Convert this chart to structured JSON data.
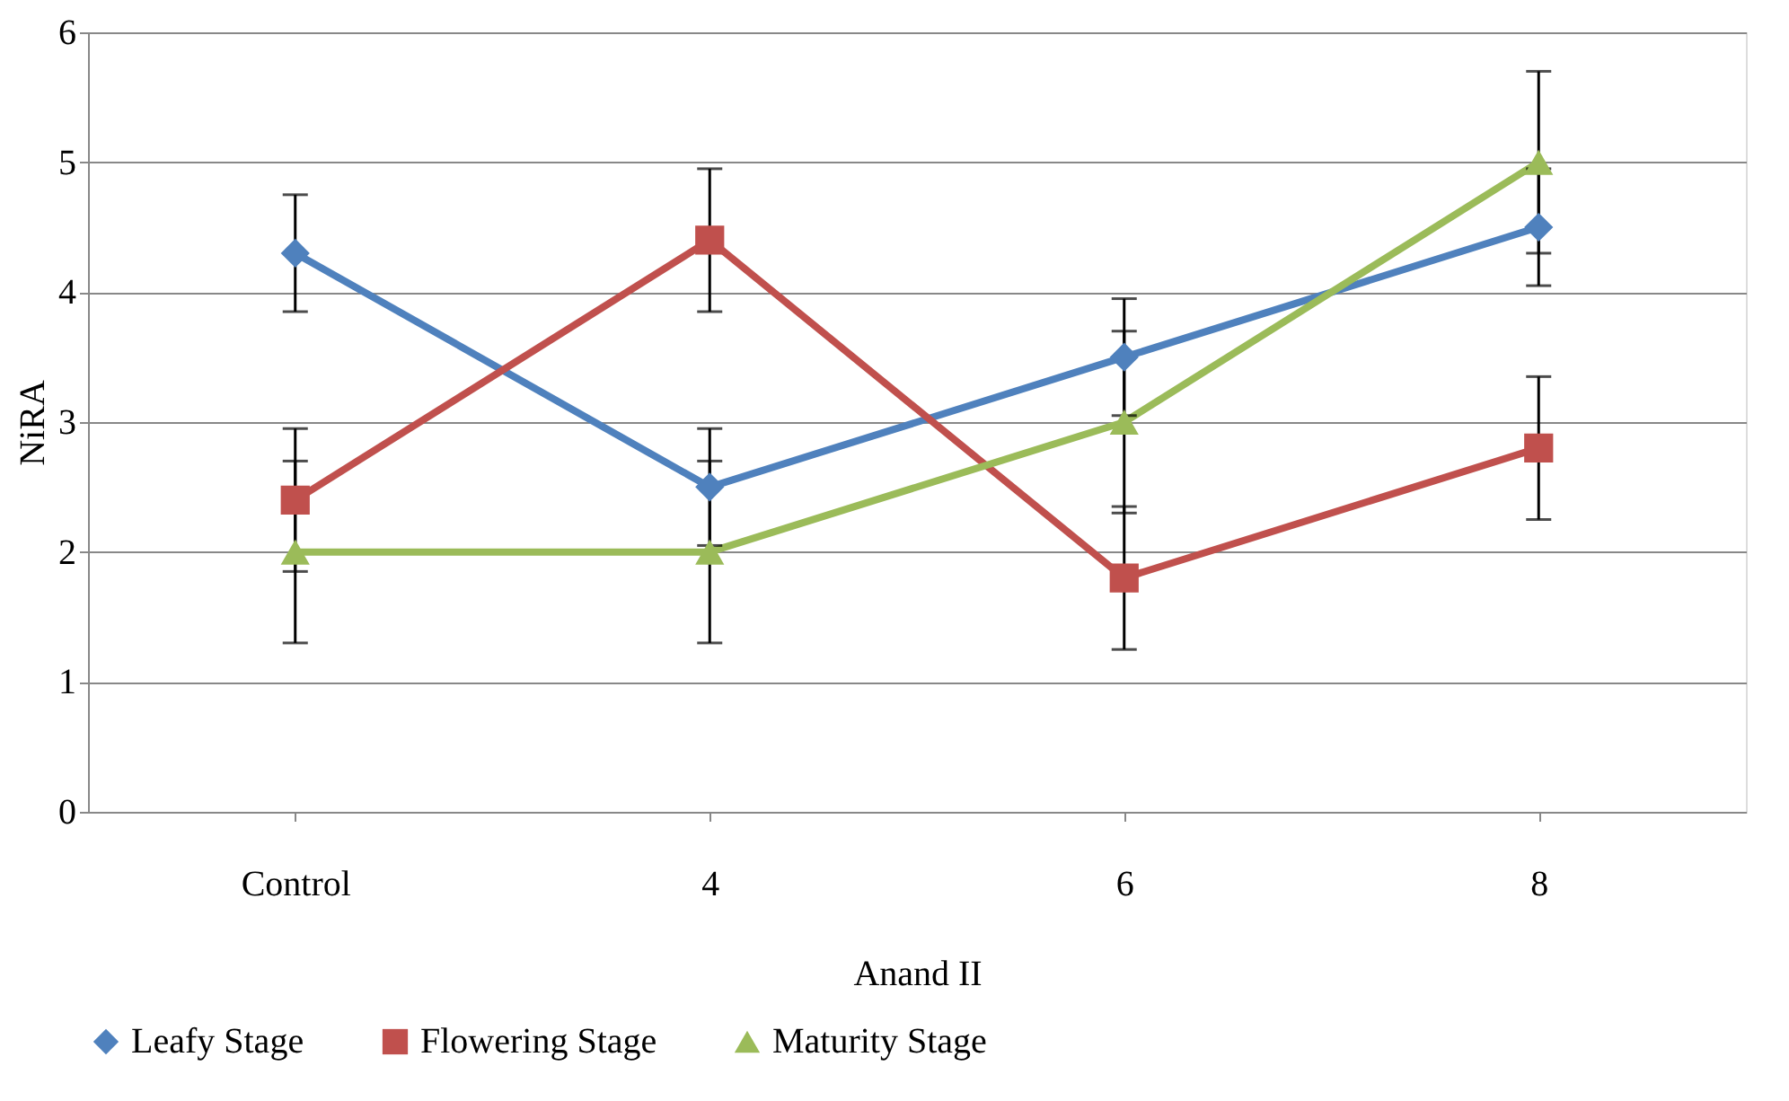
{
  "chart_data": {
    "type": "line",
    "xlabel": "Anand II",
    "ylabel": "NiRA",
    "categories": [
      "Control",
      "4",
      "6",
      "8"
    ],
    "series": [
      {
        "name": "Leafy Stage",
        "color": "#4f81bd",
        "marker": "diamond",
        "values": [
          4.3,
          2.5,
          3.5,
          4.5
        ],
        "errors": [
          0.45,
          0.45,
          0.45,
          0.45
        ]
      },
      {
        "name": "Flowering Stage",
        "color": "#c0504d",
        "marker": "square",
        "values": [
          2.4,
          4.4,
          1.8,
          2.8
        ],
        "errors": [
          0.55,
          0.55,
          0.55,
          0.55
        ]
      },
      {
        "name": "Maturity Stage",
        "color": "#9bbb59",
        "marker": "triangle",
        "values": [
          2.0,
          2.0,
          3.0,
          5.0
        ],
        "errors": [
          0.7,
          0.7,
          0.7,
          0.7
        ]
      }
    ],
    "ylim": [
      0,
      6
    ],
    "yticks": [
      0,
      1,
      2,
      3,
      4,
      5,
      6
    ],
    "grid": "y",
    "legend": "bottom",
    "line_style": "solid"
  }
}
